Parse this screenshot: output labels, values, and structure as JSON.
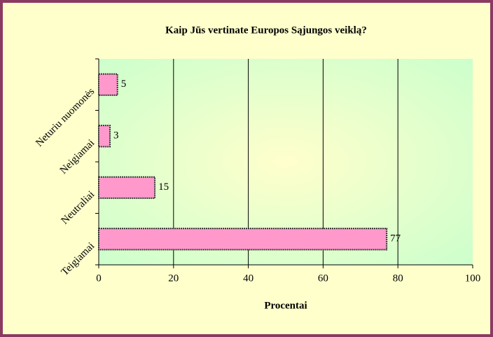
{
  "chart_data": {
    "type": "bar",
    "orientation": "horizontal",
    "title": "Kaip Jūs vertinate Europos Sąjungos veiklą?",
    "categories": [
      "Teigiamai",
      "Neutraliai",
      "Neigiamai",
      "Neturiu nuomonės"
    ],
    "values": [
      77,
      15,
      3,
      5
    ],
    "color": "#ff99cc",
    "xlabel": "Procentai",
    "xlim": [
      0,
      100
    ],
    "xticks": [
      0,
      20,
      40,
      60,
      80,
      100
    ],
    "grid": true
  }
}
